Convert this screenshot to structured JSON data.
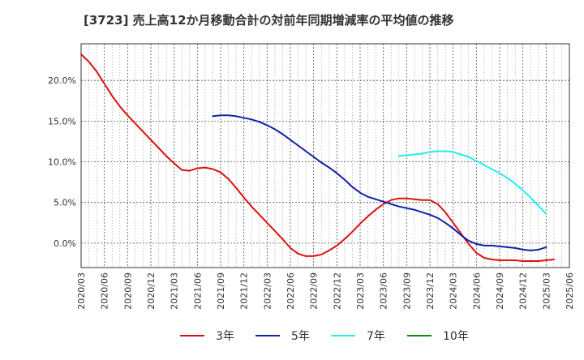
{
  "chart_data": {
    "type": "line",
    "title": "[3723]  売上高12か月移動合計の対前年同期増減率の平均値の推移",
    "xlabel": "",
    "ylabel": "",
    "x_ticks": [
      "2020/03",
      "2020/06",
      "2020/09",
      "2020/12",
      "2021/03",
      "2021/06",
      "2021/09",
      "2021/12",
      "2022/03",
      "2022/06",
      "2022/09",
      "2022/12",
      "2023/03",
      "2023/06",
      "2023/09",
      "2023/12",
      "2024/03",
      "2024/06",
      "2024/09",
      "2024/12",
      "2025/03",
      "2025/06"
    ],
    "y_ticks": [
      "20.0%",
      "15.0%",
      "10.0%",
      "5.0%",
      "0.0%"
    ],
    "y_tick_values": [
      20,
      15,
      10,
      5,
      0
    ],
    "ylim": [
      -3.0,
      24.5
    ],
    "grid": true,
    "legend_position": "bottom",
    "series": [
      {
        "name": "3年",
        "color": "#dd1111",
        "start": "2020/03",
        "values": [
          23.2,
          22.3,
          21.1,
          19.6,
          18.1,
          16.8,
          15.7,
          14.7,
          13.7,
          12.7,
          11.7,
          10.7,
          9.8,
          9.0,
          8.9,
          9.2,
          9.3,
          9.1,
          8.7,
          7.9,
          6.8,
          5.6,
          4.5,
          3.5,
          2.5,
          1.5,
          0.5,
          -0.6,
          -1.3,
          -1.6,
          -1.6,
          -1.4,
          -0.9,
          -0.3,
          0.5,
          1.4,
          2.4,
          3.3,
          4.1,
          4.8,
          5.3,
          5.5,
          5.5,
          5.4,
          5.3,
          5.3,
          4.8,
          3.8,
          2.5,
          1.2,
          -0.1,
          -1.2,
          -1.8,
          -2.0,
          -2.1,
          -2.1,
          -2.1,
          -2.2,
          -2.2,
          -2.2,
          -2.1,
          -2.0
        ]
      },
      {
        "name": "5年",
        "color": "#1122aa",
        "start": "2021/08",
        "values": [
          15.6,
          15.7,
          15.7,
          15.6,
          15.4,
          15.2,
          14.9,
          14.5,
          14.0,
          13.4,
          12.7,
          12.0,
          11.3,
          10.6,
          9.9,
          9.3,
          8.6,
          7.8,
          6.9,
          6.2,
          5.7,
          5.4,
          5.1,
          4.8,
          4.5,
          4.3,
          4.1,
          3.8,
          3.5,
          3.1,
          2.5,
          1.8,
          1.0,
          0.3,
          -0.1,
          -0.3,
          -0.3,
          -0.4,
          -0.5,
          -0.6,
          -0.8,
          -0.9,
          -0.8,
          -0.5
        ]
      },
      {
        "name": "7年",
        "color": "#22eeee",
        "start": "2023/08",
        "values": [
          10.7,
          10.8,
          10.9,
          11.0,
          11.2,
          11.3,
          11.3,
          11.2,
          10.9,
          10.6,
          10.1,
          9.6,
          9.1,
          8.6,
          8.0,
          7.3,
          6.5,
          5.6,
          4.6,
          3.6
        ]
      },
      {
        "name": "10年",
        "color": "#118811",
        "start": "",
        "values": []
      }
    ]
  }
}
